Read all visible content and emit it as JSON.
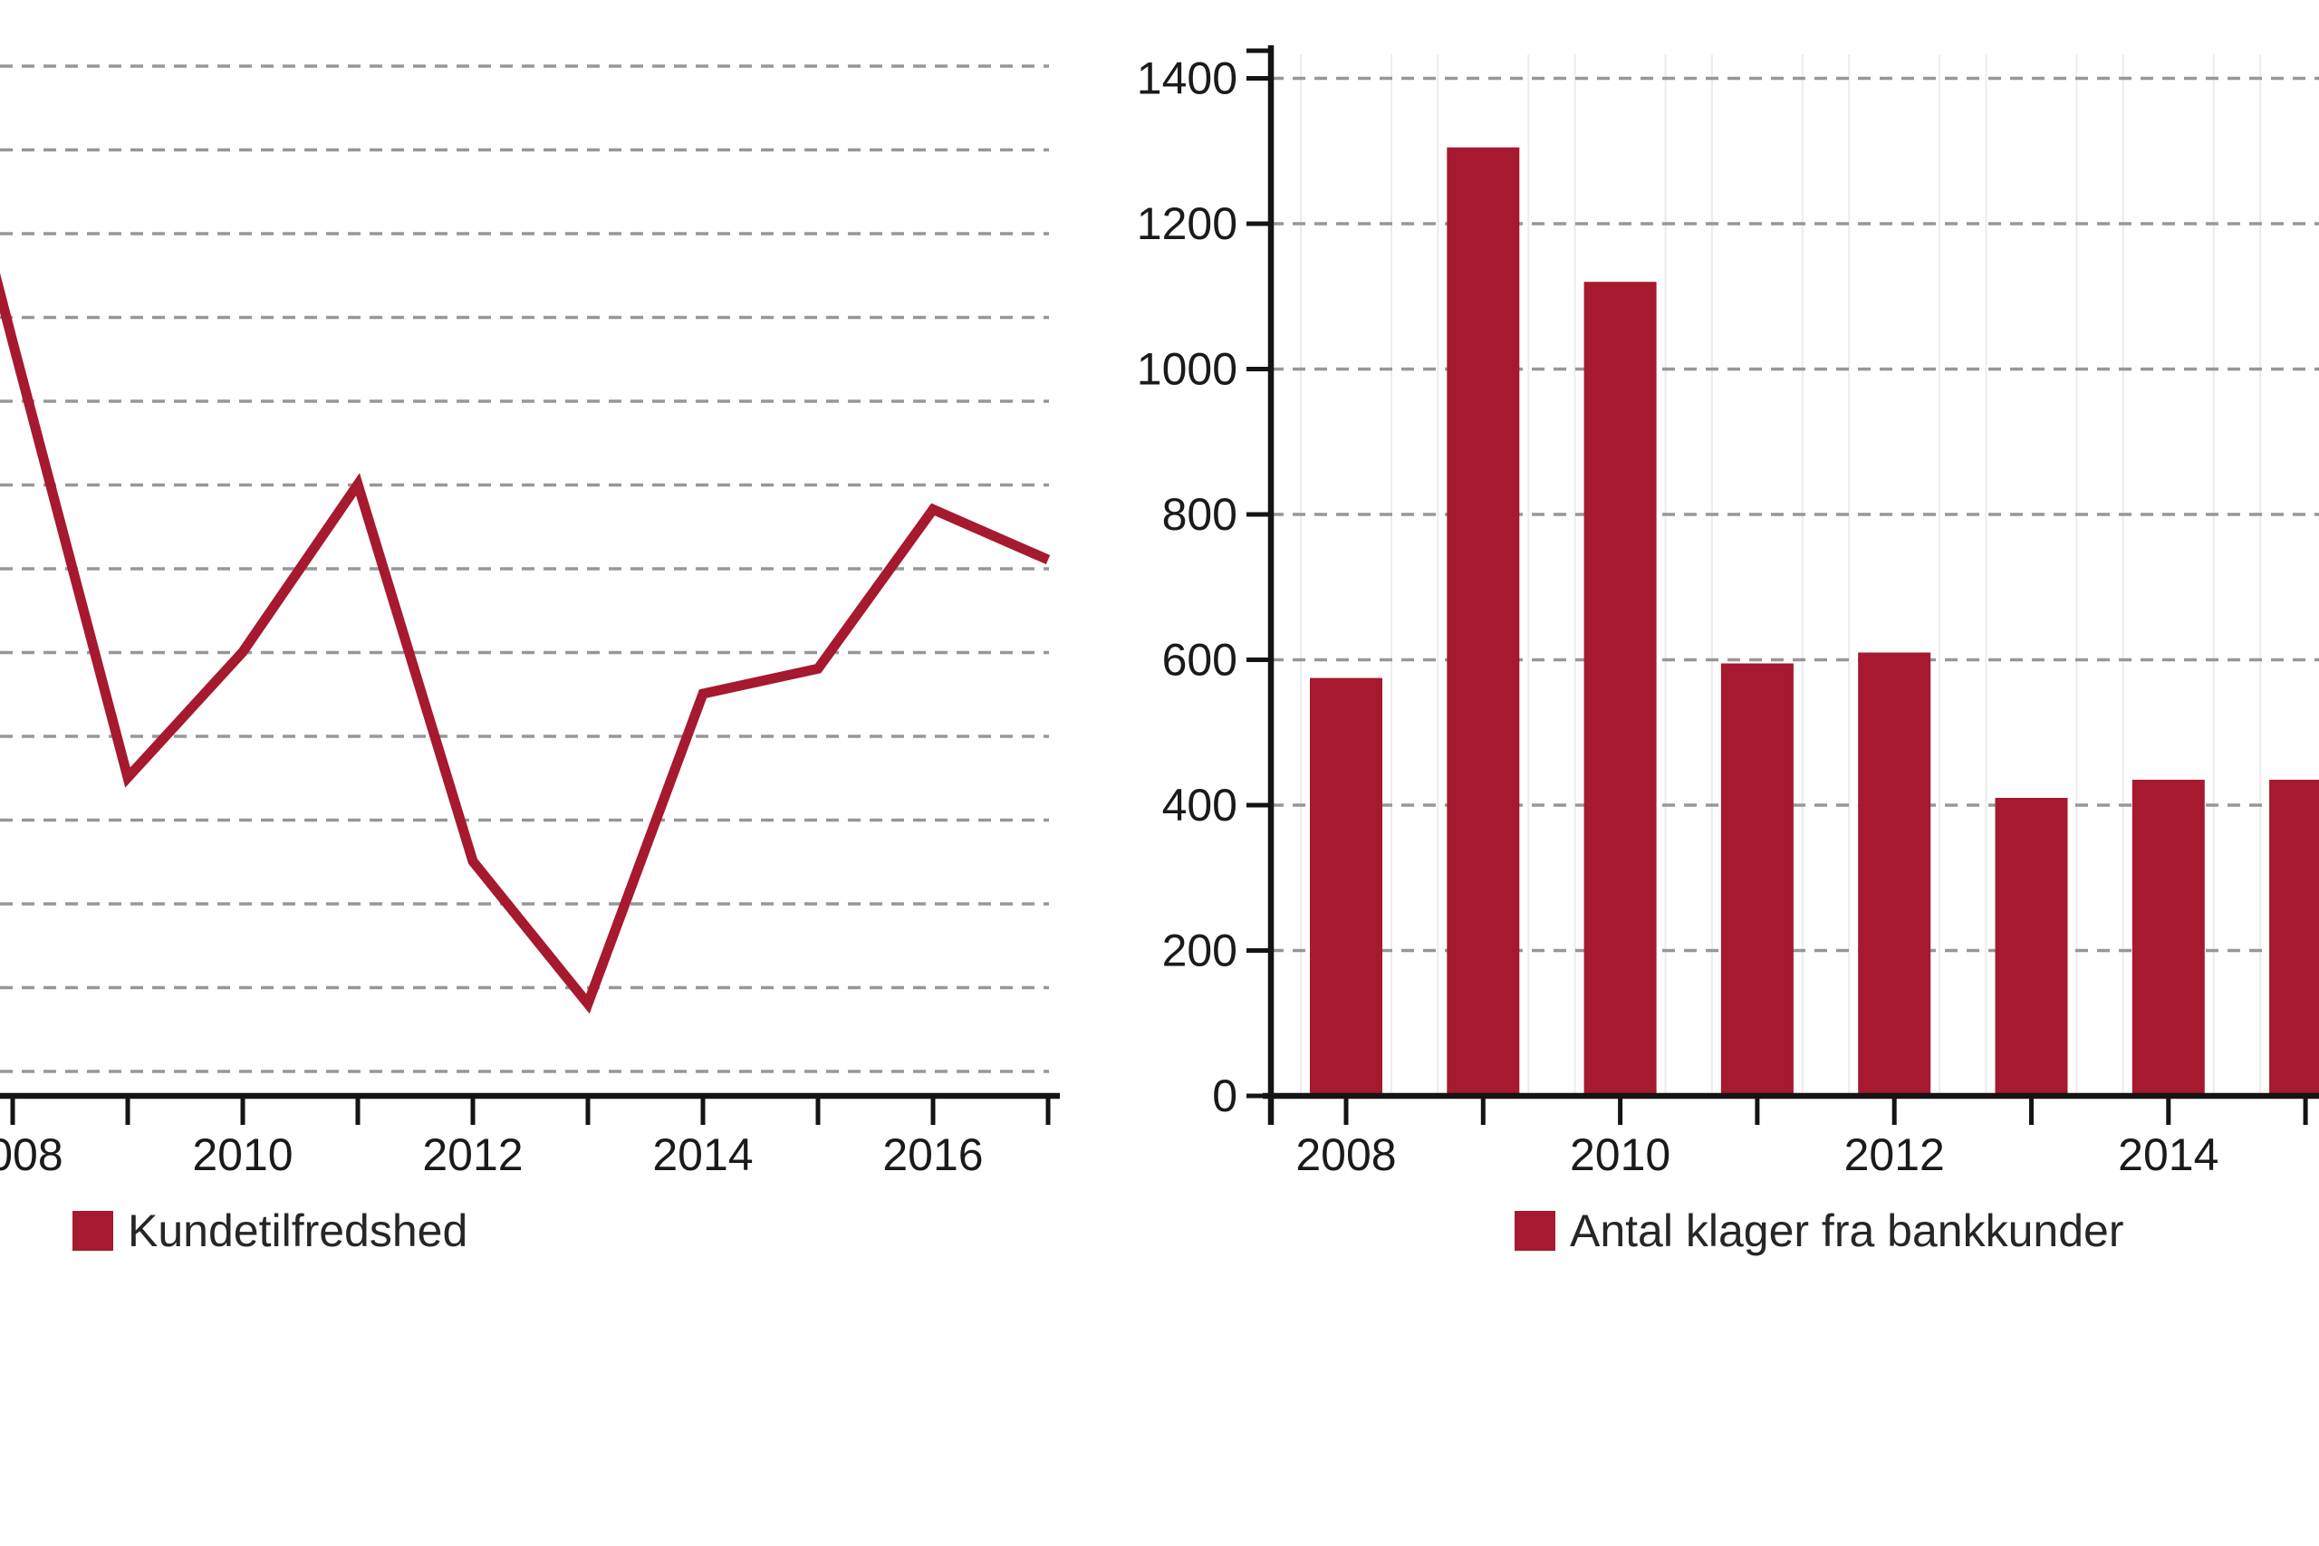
{
  "page": {
    "background_color": "#ffffff",
    "description": "Two side-by-side charts; left chart is cropped at the left image edge, right chart is cropped at the right image edge"
  },
  "style": {
    "accent_color": "#A6192E",
    "axis_color": "#141414",
    "gridline_color": "#979797",
    "faint_line_color": "#ECECEC",
    "label_color": "#1a1a1a",
    "legend_text_color": "#262626"
  },
  "chart_data": [
    {
      "type": "line",
      "title": "",
      "xlabel": "",
      "ylabel": "",
      "legend_entries": [
        "Kundetilfredshed"
      ],
      "legend_position": "bottom",
      "series": [
        {
          "name": "Kundetilfredshed",
          "color": "#A6192E",
          "x": [
            2008,
            2009,
            2010,
            2011,
            2012,
            2013,
            2014,
            2015,
            2016,
            2017
          ],
          "values": [
            9.0,
            3.8,
            5.3,
            7.3,
            2.8,
            1.1,
            4.8,
            5.1,
            7.0,
            6.4
          ]
        }
      ],
      "entry_point": {
        "x": 2007,
        "value": 14.3
      },
      "value_unit": "gridline steps above x-axis (y-axis scale labels are cropped out of the frame)",
      "x_axis": {
        "tick_years": [
          2008,
          2009,
          2010,
          2011,
          2012,
          2013,
          2014,
          2015,
          2016,
          2017
        ],
        "label_years": [
          2008,
          2010,
          2012,
          2014,
          2016
        ],
        "labels": [
          "2008",
          "2010",
          "2012",
          "2014",
          "2016"
        ]
      },
      "y_axis": {
        "visible": false,
        "gridline_count": 13,
        "gridline_style": "dashed"
      },
      "notes": "Left edge of chart (y-axis and most of the 2008 label) is cropped; line enters frame mid-segment at top left"
    },
    {
      "type": "bar",
      "title": "",
      "xlabel": "",
      "ylabel": "",
      "legend_entries": [
        "Antal klager fra bankkunder"
      ],
      "legend_position": "bottom",
      "color": "#A6192E",
      "categories": [
        2008,
        2009,
        2010,
        2011,
        2012,
        2013,
        2014,
        2015
      ],
      "values": [
        575,
        1305,
        1120,
        595,
        610,
        410,
        435,
        435
      ],
      "ylim": [
        0,
        1400
      ],
      "y_axis": {
        "tick_step": 200,
        "labels": [
          "0",
          "200",
          "400",
          "600",
          "800",
          "1000",
          "1200",
          "1400"
        ],
        "gridline_style": "dashed"
      },
      "x_axis": {
        "tick_years": [
          2008,
          2009,
          2010,
          2011,
          2012,
          2013,
          2014,
          2015
        ],
        "label_years": [
          2008,
          2010,
          2012,
          2014
        ],
        "labels": [
          "2008",
          "2010",
          "2012",
          "2014"
        ]
      },
      "notes": "Rightmost bar (2015) is clipped by the right image edge"
    }
  ]
}
